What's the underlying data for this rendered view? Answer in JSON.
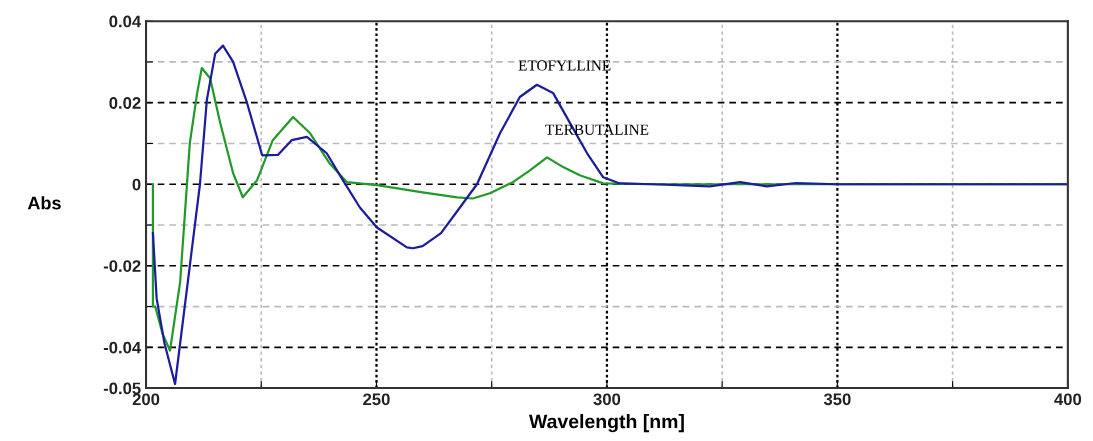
{
  "chart_data": {
    "type": "line",
    "xlabel": "Wavelength [nm]",
    "ylabel": "Abs",
    "xlim": [
      200,
      400
    ],
    "ylim": [
      -0.05,
      0.04
    ],
    "xticks": [
      200,
      {
        "value": 225,
        "label": null
      },
      250,
      {
        "value": 275,
        "label": null
      },
      300,
      {
        "value": 325,
        "label": null
      },
      350,
      {
        "value": 375,
        "label": null
      },
      400
    ],
    "yticks": [
      -0.05,
      -0.04,
      {
        "value": -0.03,
        "label": null
      },
      -0.02,
      {
        "value": -0.01,
        "label": null
      },
      0,
      {
        "value": 0.01,
        "label": null
      },
      0.02,
      {
        "value": 0.03,
        "label": null
      },
      0.04
    ],
    "grid": true,
    "legend": false,
    "marker": "none",
    "line_style": "solid",
    "series": [
      {
        "name": "ETOFYLLINE",
        "color": "#1c1c9c",
        "x": [
          201.5,
          202.3,
          204.0,
          206.3,
          209.5,
          211.7,
          213.2,
          215.0,
          216.7,
          218.9,
          221.9,
          225.2,
          228.6,
          231.6,
          234.9,
          239.2,
          242.7,
          246.4,
          250.1,
          256.6,
          257.9,
          260.0,
          264.0,
          268.1,
          271.8,
          276.8,
          281.1,
          284.8,
          288.3,
          292.0,
          295.7,
          299.2,
          302.8,
          310.0,
          322.3,
          328.9,
          334.7,
          341.0,
          350.0,
          400.0
        ],
        "values": [
          -0.012,
          -0.028,
          -0.039,
          -0.049,
          -0.02,
          0,
          0.0207,
          0.032,
          0.034,
          0.03,
          0.02,
          0.0071,
          0.0072,
          0.0108,
          0.0116,
          0.0076,
          0.001,
          -0.0057,
          -0.0106,
          -0.0155,
          -0.0157,
          -0.0152,
          -0.012,
          -0.0057,
          0,
          0.0125,
          0.0214,
          0.0244,
          0.0224,
          0.015,
          0.0076,
          0.0017,
          0.0002,
          0,
          -0.0005,
          0.0005,
          -0.0005,
          0.0003,
          0,
          0
        ]
      },
      {
        "name": "TERBUTALINE",
        "color": "#23992a",
        "x": [
          201.5,
          201.5,
          202.0,
          203.6,
          205.2,
          207.4,
          209.5,
          211.1,
          212.1,
          213.9,
          216.1,
          218.9,
          221.0,
          224.1,
          227.5,
          231.9,
          235.6,
          239.9,
          243.6,
          250.1,
          260.0,
          267.5,
          270.9,
          274.6,
          279.6,
          283.3,
          287.0,
          290.5,
          294.1,
          299.2,
          310.0,
          400.0
        ],
        "values": [
          0,
          -0.03,
          -0.03,
          -0.0367,
          -0.0408,
          -0.024,
          0.0101,
          0.0224,
          0.0285,
          0.026,
          0.015,
          0.0027,
          -0.0032,
          0.001,
          0.0108,
          0.0165,
          0.0125,
          0.005,
          0.0005,
          -0.0002,
          -0.002,
          -0.0032,
          -0.0035,
          -0.0022,
          0.0005,
          0.0034,
          0.0066,
          0.0042,
          0.0022,
          0.0002,
          0,
          0
        ]
      }
    ]
  }
}
